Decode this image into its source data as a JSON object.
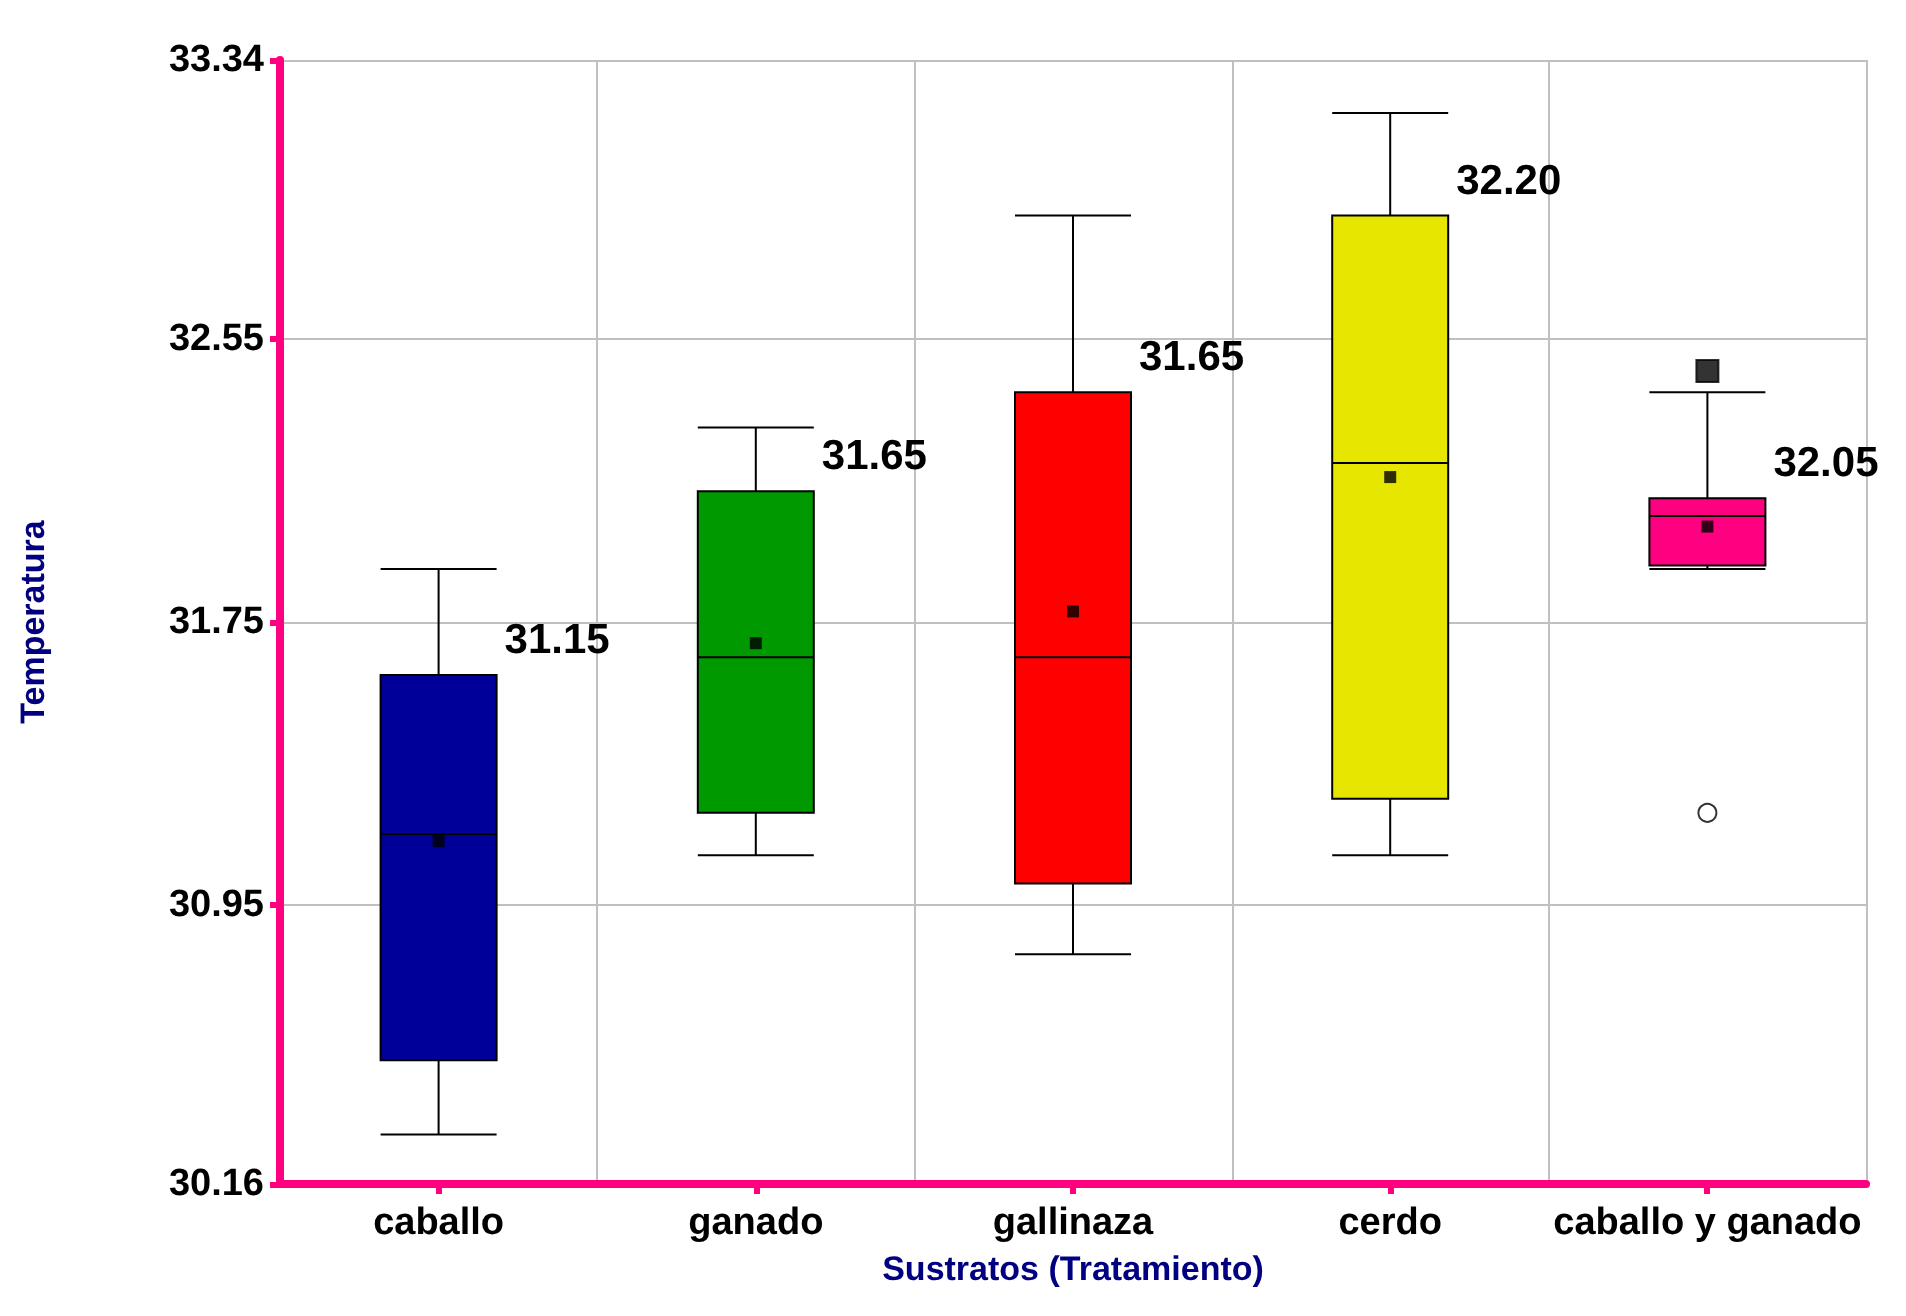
{
  "chart_data": {
    "type": "box",
    "xlabel": "Sustratos (Tratamiento)",
    "ylabel": "Temperatura",
    "categories": [
      "caballo",
      "ganado",
      "gallinaza",
      "cerdo",
      "caballo y ganado"
    ],
    "colors": [
      "#000099",
      "#009900",
      "#ff0000",
      "#e6e600",
      "#ff0080"
    ],
    "boxes": [
      {
        "low": 30.3,
        "q1": 30.51,
        "median": 31.15,
        "q3": 31.6,
        "high": 31.9,
        "mean": 31.13
      },
      {
        "low": 31.09,
        "q1": 31.21,
        "median": 31.65,
        "q3": 32.12,
        "high": 32.3,
        "mean": 31.69
      },
      {
        "low": 30.81,
        "q1": 31.01,
        "median": 31.65,
        "q3": 32.4,
        "high": 32.9,
        "mean": 31.78
      },
      {
        "low": 31.09,
        "q1": 31.25,
        "median": 32.2,
        "q3": 32.9,
        "high": 33.19,
        "mean": 32.16
      },
      {
        "low": 31.9,
        "q1": 31.91,
        "median": 32.05,
        "q3": 32.1,
        "high": 32.4,
        "mean": 32.02,
        "outliers": [
          32.46,
          31.21
        ]
      }
    ],
    "annotations": [
      "31.15",
      "31.65",
      "31.65",
      "32.20",
      "32.05"
    ],
    "ylim": [
      30.16,
      33.34
    ],
    "yticks": [
      30.16,
      30.95,
      31.75,
      32.55,
      33.34
    ],
    "grid": true
  }
}
